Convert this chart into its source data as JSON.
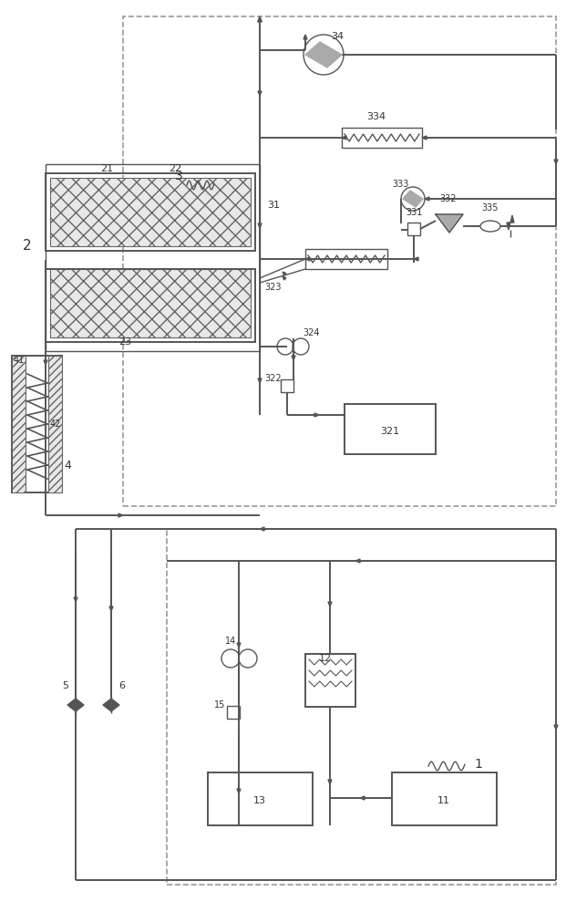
{
  "bg": "#ffffff",
  "lc": "#555555",
  "dc": "#aaaaaa",
  "lw": 1.0,
  "lw2": 1.4
}
